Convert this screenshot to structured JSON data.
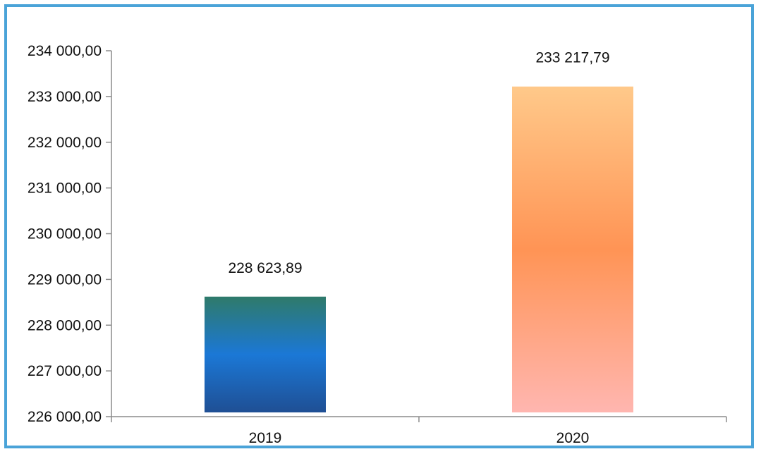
{
  "chart_data": {
    "type": "bar",
    "title": "",
    "xlabel": "",
    "ylabel": "",
    "categories": [
      "2019",
      "2020"
    ],
    "values": [
      228623.89,
      233217.79
    ],
    "data_labels": [
      "228 623,89",
      "233 217,79"
    ],
    "ylim": [
      226000,
      234000
    ],
    "y_ticks": [
      226000,
      227000,
      228000,
      229000,
      230000,
      231000,
      232000,
      233000,
      234000
    ],
    "y_tick_labels": [
      "226 000,00",
      "227 000,00",
      "228 000,00",
      "229 000,00",
      "230 000,00",
      "231 000,00",
      "232 000,00",
      "233 000,00",
      "234 000,00"
    ],
    "grid": false,
    "legend": "none",
    "bar_gradients": [
      [
        "#2f7a6a",
        "#1b78d6",
        "#1f4f94"
      ],
      [
        "#ffc98a",
        "#ff9455",
        "#ffb6b0"
      ]
    ],
    "frame_color": "#4aa3d8"
  }
}
